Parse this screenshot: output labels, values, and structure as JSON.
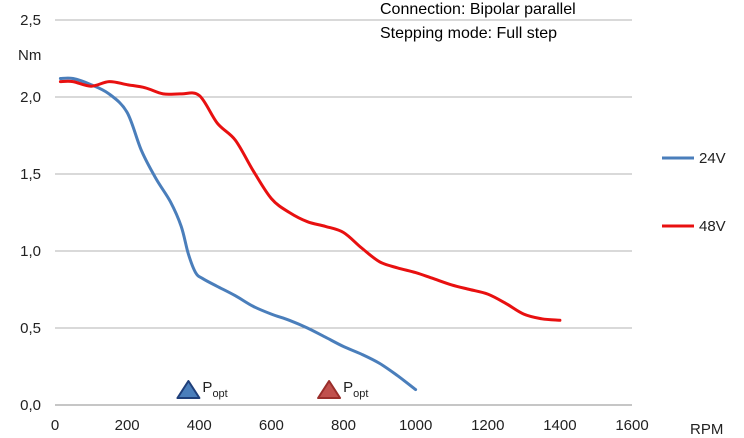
{
  "chart_data": {
    "type": "line",
    "info_lines": [
      "Connection: Bipolar parallel",
      "Stepping mode: Full step"
    ],
    "y_unit": "Nm",
    "x_unit": "RPM",
    "xlim": [
      0,
      1600
    ],
    "ylim": [
      0,
      2.5
    ],
    "x_ticks": [
      0,
      200,
      400,
      600,
      800,
      1000,
      1200,
      1400,
      1600
    ],
    "x_tick_labels": [
      "0",
      "200",
      "400",
      "600",
      "800",
      "1000",
      "1200",
      "1400",
      "1600"
    ],
    "y_ticks": [
      0,
      0.5,
      1.0,
      1.5,
      2.0,
      2.5
    ],
    "y_tick_labels": [
      "0,0",
      "0,5",
      "1,0",
      "1,5",
      "2,0",
      "2,5"
    ],
    "grid": "horizontal",
    "legend_position": "right",
    "series": [
      {
        "name": "24V",
        "color": "#4a7ebb",
        "x": [
          15,
          50,
          100,
          150,
          200,
          240,
          280,
          320,
          350,
          370,
          390,
          410,
          450,
          500,
          550,
          600,
          650,
          700,
          750,
          800,
          850,
          900,
          950,
          1000
        ],
        "y": [
          2.12,
          2.12,
          2.08,
          2.02,
          1.9,
          1.65,
          1.47,
          1.32,
          1.16,
          0.98,
          0.86,
          0.82,
          0.77,
          0.71,
          0.64,
          0.59,
          0.55,
          0.5,
          0.44,
          0.38,
          0.33,
          0.27,
          0.19,
          0.1
        ]
      },
      {
        "name": "48V",
        "color": "#e81010",
        "x": [
          15,
          50,
          100,
          150,
          200,
          250,
          300,
          350,
          400,
          450,
          500,
          550,
          600,
          650,
          700,
          750,
          800,
          850,
          900,
          950,
          1000,
          1050,
          1100,
          1150,
          1200,
          1250,
          1300,
          1350,
          1400
        ],
        "y": [
          2.1,
          2.1,
          2.07,
          2.1,
          2.08,
          2.06,
          2.02,
          2.02,
          2.01,
          1.83,
          1.72,
          1.52,
          1.34,
          1.25,
          1.19,
          1.16,
          1.12,
          1.02,
          0.93,
          0.89,
          0.86,
          0.82,
          0.78,
          0.75,
          0.72,
          0.66,
          0.59,
          0.56,
          0.55
        ]
      }
    ],
    "markers": [
      {
        "label": "P",
        "subscript": "opt",
        "x": 370,
        "y": 0.09,
        "color": "#4a7ebb",
        "edge": "#1f3f7a"
      },
      {
        "label": "P",
        "subscript": "opt",
        "x": 760,
        "y": 0.09,
        "color": "#c0504d",
        "edge": "#9a2e2b"
      }
    ]
  }
}
